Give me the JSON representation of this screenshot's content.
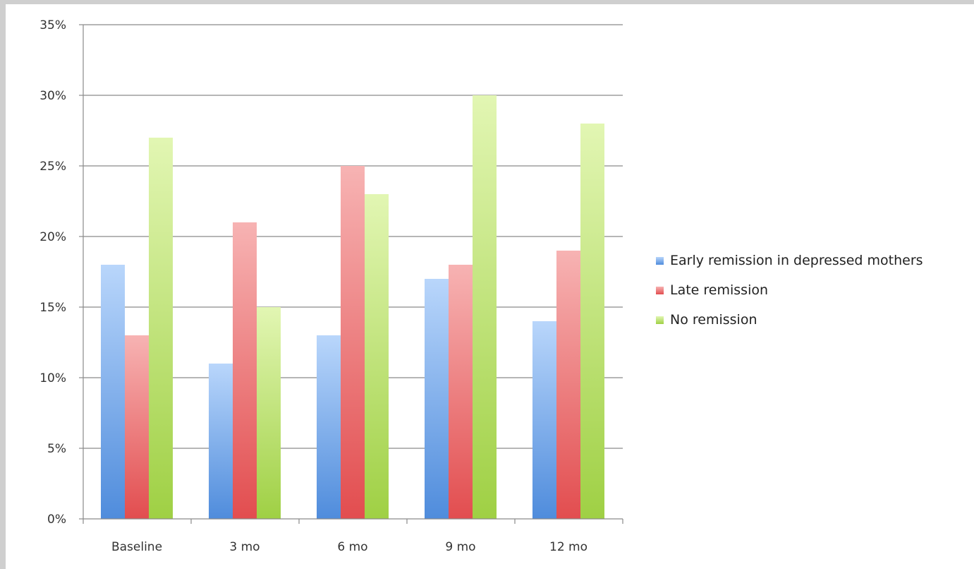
{
  "chart_data": {
    "type": "bar",
    "title": "",
    "xlabel": "",
    "ylabel": "",
    "categories": [
      "Baseline",
      "3 mo",
      "6 mo",
      "9 mo",
      "12 mo"
    ],
    "series": [
      {
        "name": "Early remission in depressed mothers",
        "color": "#6fa3e8",
        "values": [
          18,
          11,
          13,
          17,
          14
        ]
      },
      {
        "name": "Late remission",
        "color": "#e8696b",
        "values": [
          13,
          21,
          25,
          18,
          19
        ]
      },
      {
        "name": "No remission",
        "color": "#b3dd62",
        "values": [
          27,
          15,
          23,
          30,
          28
        ]
      }
    ],
    "ylim": [
      0,
      35
    ],
    "y_ticks": [
      0,
      5,
      10,
      15,
      20,
      25,
      30,
      35
    ],
    "y_tick_labels": [
      "0%",
      "5%",
      "10%",
      "15%",
      "20%",
      "25%",
      "30%",
      "35%"
    ],
    "grid": true,
    "legend_position": "right"
  }
}
